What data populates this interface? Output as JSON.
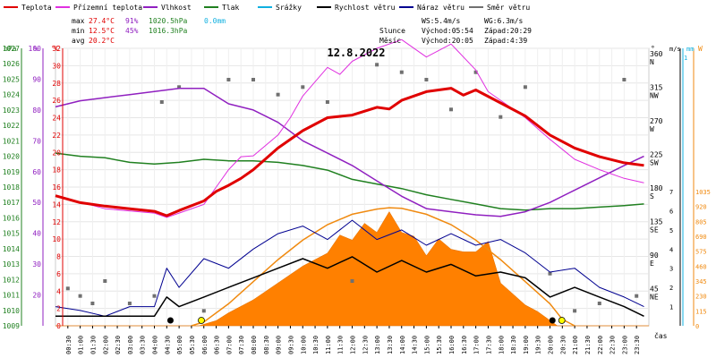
{
  "chart_data": {
    "type": "line",
    "date": "12.8.2022",
    "time_label": "čas",
    "legend": [
      {
        "name": "Teplota",
        "color": "#e00000"
      },
      {
        "name": "Přízemní teplota",
        "color": "#e030e0"
      },
      {
        "name": "Vlhkost",
        "color": "#9020c0"
      },
      {
        "name": "Tlak",
        "color": "#208020"
      },
      {
        "name": "Srážky",
        "color": "#10b0e0"
      },
      {
        "name": "Rychlost větru",
        "color": "#000000"
      },
      {
        "name": "Náraz větru",
        "color": "#000090"
      },
      {
        "name": "Směr větru",
        "color": "#707070"
      }
    ],
    "summary": {
      "max": {
        "label": "max",
        "temp": "27.4°C",
        "hum": "91%",
        "press": "1020.5hPa",
        "rain": "0.0mm"
      },
      "min": {
        "label": "min",
        "temp": "12.5°C",
        "hum": "45%",
        "press": "1016.3hPa"
      },
      "avg": {
        "label": "avg",
        "temp": "20.2°C"
      }
    },
    "wind_info": {
      "ws": "WS:5.4m/s",
      "wg": "WG:6.3m/s"
    },
    "sun": {
      "label": "Slunce",
      "rise": "Východ:05:54",
      "set": "Západ:20:29"
    },
    "moon": {
      "label": "Měsíc",
      "rise": "Východ:20:05",
      "set": "Západ:4:39"
    },
    "axes": {
      "hpa": {
        "unit": "hPa",
        "ticks": [
          "1009",
          "1010",
          "1011",
          "1012",
          "1013",
          "1014",
          "1015",
          "1016",
          "1017",
          "1018",
          "1019",
          "1020",
          "1021",
          "1022",
          "1023",
          "1024",
          "1025",
          "1026",
          "1027"
        ]
      },
      "pct": {
        "unit": "%",
        "ticks": [
          "20",
          "30",
          "40",
          "50",
          "60",
          "70",
          "80",
          "90",
          "100"
        ]
      },
      "temp": {
        "unit": "°C",
        "ticks": [
          "0",
          "2",
          "4",
          "6",
          "8",
          "10",
          "12",
          "14",
          "16",
          "18",
          "20",
          "22",
          "24",
          "26",
          "28",
          "30",
          "32"
        ]
      },
      "dir": {
        "unit": "°",
        "ticks": [
          {
            "deg": "45",
            "dir": "NE"
          },
          {
            "deg": "90",
            "dir": "E"
          },
          {
            "deg": "135",
            "dir": "SE"
          },
          {
            "deg": "180",
            "dir": "S"
          },
          {
            "deg": "225",
            "dir": "SW"
          },
          {
            "deg": "270",
            "dir": "W"
          },
          {
            "deg": "315",
            "dir": "NW"
          },
          {
            "deg": "360",
            "dir": "N"
          }
        ]
      },
      "ms": {
        "unit": "m/s",
        "ticks": [
          "1",
          "2",
          "3",
          "4",
          "5",
          "6",
          "7"
        ]
      },
      "mm": {
        "unit": "mm",
        "ticks": [
          "1"
        ]
      },
      "w": {
        "unit": "W",
        "ticks": [
          "0",
          "115",
          "230",
          "345",
          "460",
          "575",
          "690",
          "805",
          "920",
          "1035"
        ]
      },
      "x_ticks": [
        "00:30",
        "01:00",
        "01:30",
        "02:00",
        "02:30",
        "03:00",
        "03:30",
        "04:00",
        "04:30",
        "05:00",
        "05:30",
        "06:00",
        "06:30",
        "07:00",
        "07:30",
        "08:00",
        "08:30",
        "09:00",
        "09:30",
        "10:00",
        "10:30",
        "11:00",
        "11:30",
        "12:00",
        "12:30",
        "13:00",
        "13:30",
        "14:00",
        "14:30",
        "15:00",
        "15:30",
        "16:00",
        "16:30",
        "17:00",
        "17:30",
        "18:00",
        "18:30",
        "19:00",
        "19:30",
        "20:00",
        "20:30",
        "21:00",
        "21:30",
        "22:00",
        "22:30",
        "23:00",
        "23:30"
      ]
    },
    "series": [
      {
        "name": "Teplota",
        "unit": "°C",
        "x": [
          0,
          1,
          2,
          3,
          4,
          4.5,
          5,
          6,
          6.5,
          7,
          7.5,
          8,
          9,
          10,
          11,
          12,
          13,
          13.5,
          14,
          15,
          16,
          16.5,
          17,
          18,
          19,
          20,
          21,
          22,
          23,
          23.8
        ],
        "values": [
          15,
          14.2,
          13.8,
          13.5,
          13.2,
          12.7,
          13.3,
          14.4,
          15.5,
          16.2,
          17,
          18,
          20.5,
          22.5,
          24,
          24.3,
          25.2,
          25,
          26,
          27,
          27.4,
          26.6,
          27.2,
          25.7,
          24.2,
          22,
          20.5,
          19.5,
          18.8,
          18.5
        ]
      },
      {
        "name": "Přízemní teplota",
        "unit": "°C",
        "x": [
          0,
          2,
          4,
          4.5,
          5,
          6,
          6.5,
          7,
          7.5,
          8,
          9,
          9.5,
          10,
          11,
          11.5,
          12,
          13,
          14,
          15,
          16,
          17,
          17.5,
          18,
          19,
          20,
          21,
          22,
          23,
          23.8
        ],
        "values": [
          15,
          13.5,
          13,
          12.5,
          13,
          14,
          16,
          18,
          19.5,
          19.6,
          22,
          24,
          26.5,
          29.8,
          29,
          30.5,
          32,
          33,
          31,
          32.5,
          29.5,
          27,
          26,
          24,
          21.5,
          19.2,
          18,
          17,
          16.5
        ]
      },
      {
        "name": "Vlhkost",
        "unit": "%",
        "x": [
          0,
          1,
          2,
          3,
          4,
          5,
          6,
          7,
          8,
          9,
          10,
          11,
          12,
          13,
          14,
          15,
          16,
          17,
          18,
          19,
          20,
          21,
          22,
          23,
          23.8
        ],
        "values": [
          81,
          83,
          84,
          85,
          86,
          87,
          87,
          82,
          80,
          76,
          70,
          66,
          62,
          57,
          52,
          48,
          47,
          46,
          45.5,
          47,
          50,
          54,
          58,
          62,
          65
        ]
      },
      {
        "name": "Tlak",
        "unit": "hPa",
        "x": [
          0,
          1,
          2,
          3,
          4,
          5,
          6,
          7,
          8,
          9,
          10,
          11,
          12,
          13,
          14,
          15,
          16,
          17,
          18,
          19,
          20,
          21,
          22,
          23,
          23.8
        ],
        "values": [
          1020.2,
          1020,
          1019.9,
          1019.6,
          1019.5,
          1019.6,
          1019.8,
          1019.7,
          1019.7,
          1019.6,
          1019.4,
          1019.1,
          1018.5,
          1018.2,
          1017.9,
          1017.5,
          1017.2,
          1016.9,
          1016.6,
          1016.5,
          1016.6,
          1016.6,
          1016.7,
          1016.8,
          1016.9
        ]
      },
      {
        "name": "Rychlost větru",
        "unit": "m/s",
        "x": [
          0,
          1,
          2,
          3,
          4,
          4.5,
          5,
          6,
          7,
          8,
          9,
          10,
          11,
          12,
          13,
          14,
          15,
          16,
          17,
          18,
          19,
          20,
          21,
          22,
          23,
          23.8
        ],
        "values": [
          0.5,
          0.5,
          0.5,
          0.5,
          0.5,
          1.5,
          1,
          1.5,
          2,
          2.5,
          3,
          3.5,
          3,
          3.6,
          2.8,
          3.4,
          2.8,
          3.2,
          2.6,
          2.8,
          2.5,
          1.5,
          2,
          1.5,
          1,
          0.5
        ]
      },
      {
        "name": "Náraz větru",
        "unit": "m/s",
        "x": [
          0,
          1,
          2,
          3,
          4,
          4.5,
          5,
          6,
          7,
          8,
          9,
          10,
          11,
          12,
          13,
          14,
          15,
          16,
          17,
          18,
          19,
          20,
          21,
          22,
          23,
          23.8
        ],
        "values": [
          1,
          0.8,
          0.5,
          1,
          1,
          3,
          2,
          3.5,
          3,
          4,
          4.8,
          5.2,
          4.5,
          5.5,
          4.5,
          5,
          4.2,
          4.8,
          4.2,
          4.5,
          3.8,
          2.8,
          3,
          2,
          1.5,
          1
        ]
      },
      {
        "name": "Sluneční záření",
        "unit": "W",
        "x": [
          0,
          5.8,
          6.5,
          7,
          8,
          9,
          10,
          11,
          11.5,
          12,
          12.5,
          13,
          13.5,
          14,
          14.5,
          15,
          15.5,
          16,
          16.5,
          17,
          17.5,
          18,
          19,
          19.5,
          20.3,
          24
        ],
        "values": [
          0,
          0,
          40,
          100,
          200,
          330,
          460,
          560,
          700,
          660,
          790,
          720,
          880,
          720,
          690,
          540,
          670,
          590,
          570,
          570,
          650,
          330,
          160,
          110,
          0,
          0
        ]
      },
      {
        "name": "Teoretické záření",
        "unit": "W",
        "x": [
          5.5,
          6,
          7,
          8,
          9,
          10,
          11,
          12,
          13,
          13.5,
          14,
          15,
          16,
          17,
          18,
          19,
          20,
          20.5,
          21
        ],
        "values": [
          0,
          30,
          170,
          340,
          510,
          660,
          780,
          860,
          900,
          910,
          905,
          860,
          780,
          660,
          510,
          340,
          170,
          50,
          0
        ]
      },
      {
        "name": "Směr větru",
        "unit": "°",
        "x": [
          0.5,
          1,
          1.5,
          2,
          3,
          4,
          4.3,
          5,
          6,
          7,
          8,
          9,
          10,
          11,
          12,
          13,
          14,
          15,
          16,
          17,
          18,
          19,
          20,
          21,
          22,
          23,
          23.5
        ],
        "values": [
          50,
          40,
          30,
          60,
          30,
          40,
          300,
          320,
          20,
          330,
          330,
          310,
          320,
          300,
          60,
          350,
          340,
          330,
          290,
          340,
          280,
          320,
          70,
          20,
          30,
          330,
          40
        ]
      }
    ]
  }
}
